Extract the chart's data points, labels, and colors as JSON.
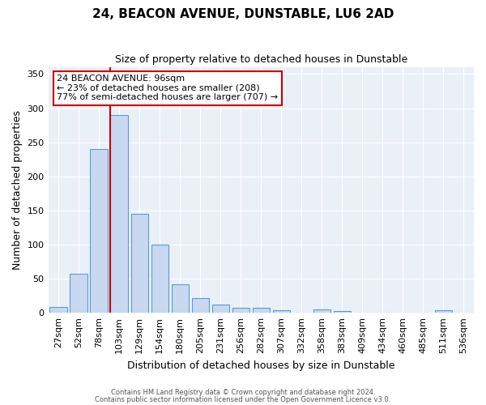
{
  "title": "24, BEACON AVENUE, DUNSTABLE, LU6 2AD",
  "subtitle": "Size of property relative to detached houses in Dunstable",
  "xlabel": "Distribution of detached houses by size in Dunstable",
  "ylabel": "Number of detached properties",
  "categories": [
    "27sqm",
    "52sqm",
    "78sqm",
    "103sqm",
    "129sqm",
    "154sqm",
    "180sqm",
    "205sqm",
    "231sqm",
    "256sqm",
    "282sqm",
    "307sqm",
    "332sqm",
    "358sqm",
    "383sqm",
    "409sqm",
    "434sqm",
    "460sqm",
    "485sqm",
    "511sqm",
    "536sqm"
  ],
  "values": [
    8,
    57,
    240,
    290,
    145,
    100,
    42,
    21,
    12,
    7,
    7,
    4,
    0,
    5,
    3,
    0,
    0,
    0,
    0,
    4,
    0
  ],
  "bar_color": "#c8d8f0",
  "bar_edge_color": "#5b9bd5",
  "vline_color": "#cc0000",
  "vline_pos": 2.575,
  "annotation_text": "24 BEACON AVENUE: 96sqm\n← 23% of detached houses are smaller (208)\n77% of semi-detached houses are larger (707) →",
  "annotation_box_color": "#ffffff",
  "annotation_box_edge": "#cc0000",
  "ylim": [
    0,
    360
  ],
  "yticks": [
    0,
    50,
    100,
    150,
    200,
    250,
    300,
    350
  ],
  "bg_color": "#eaf0f8",
  "footer1": "Contains HM Land Registry data © Crown copyright and database right 2024.",
  "footer2": "Contains public sector information licensed under the Open Government Licence v3.0."
}
